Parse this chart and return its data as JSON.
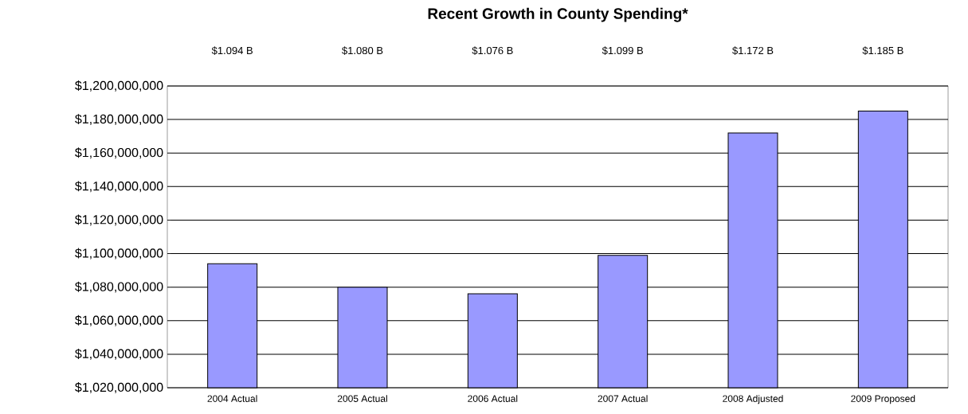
{
  "chart_data": {
    "type": "bar",
    "title": "Recent Growth in County Spending*",
    "categories": [
      "2004 Actual",
      "2005 Actual",
      "2006 Actual",
      "2007 Actual",
      "2008 Adjusted",
      "2009 Proposed"
    ],
    "values": [
      1094000000,
      1080000000,
      1076000000,
      1099000000,
      1172000000,
      1185000000
    ],
    "value_labels": [
      "$1.094 B",
      "$1.080 B",
      "$1.076 B",
      "$1.099 B",
      "$1.172 B",
      "$1.185 B"
    ],
    "color": "#9999ff",
    "ylim": [
      1020000000,
      1200000000
    ],
    "yticks": [
      {
        "value": 1020000000,
        "label": "$1,020,000,000"
      },
      {
        "value": 1040000000,
        "label": "$1,040,000,000"
      },
      {
        "value": 1060000000,
        "label": "$1,060,000,000"
      },
      {
        "value": 1080000000,
        "label": "$1,080,000,000"
      },
      {
        "value": 1100000000,
        "label": "$1,100,000,000"
      },
      {
        "value": 1120000000,
        "label": "$1,120,000,000"
      },
      {
        "value": 1140000000,
        "label": "$1,140,000,000"
      },
      {
        "value": 1160000000,
        "label": "$1,160,000,000"
      },
      {
        "value": 1180000000,
        "label": "$1,180,000,000"
      },
      {
        "value": 1200000000,
        "label": "$1,200,000,000"
      }
    ],
    "grid": "y"
  }
}
